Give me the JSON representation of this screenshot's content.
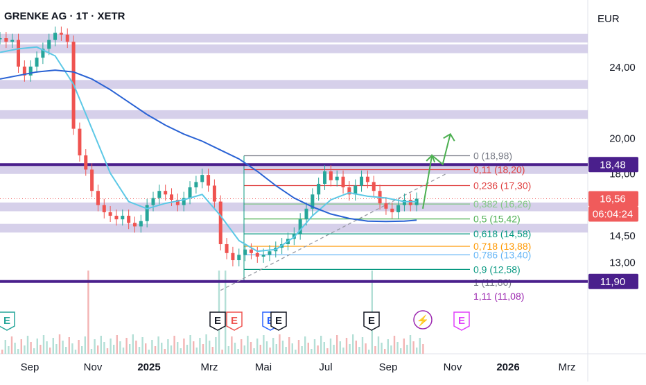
{
  "chart_data": {
    "type": "line",
    "title": "GRENKE AG · 1T · XETR",
    "currency": "EUR",
    "x_ticks": [
      "Sep",
      "Nov",
      "2025",
      "Mrz",
      "Mai",
      "Jul",
      "Sep",
      "Nov",
      "2026",
      "Mrz"
    ],
    "y_ticks": [
      "24,00",
      "20,00",
      "18,00",
      "14,50",
      "13,00"
    ],
    "ylim": [
      10.5,
      26.5
    ],
    "grid": false,
    "price_badges": [
      {
        "label": "18,48",
        "value": 18.48,
        "color": "#4a1f8c"
      },
      {
        "label": "16,56",
        "value": 16.56,
        "color": "#f05b5b"
      },
      {
        "label": "06:04:24",
        "value": 15.42,
        "color": "#f05b5b"
      },
      {
        "label": "11,90",
        "value": 11.9,
        "color": "#4a1f8c"
      }
    ],
    "fibonacci_levels": [
      {
        "label": "0 (18,98)",
        "value": 18.98,
        "color": "#787b86"
      },
      {
        "label": "0,11 (18,20)",
        "value": 18.2,
        "color": "#e04040"
      },
      {
        "label": "0,236 (17,30)",
        "value": 17.3,
        "color": "#e04040"
      },
      {
        "label": "0,382 (16,26)",
        "value": 16.26,
        "color": "#81c784"
      },
      {
        "label": "0,5 (15,42)",
        "value": 15.42,
        "color": "#4caf50"
      },
      {
        "label": "0,618 (14,58)",
        "value": 14.58,
        "color": "#089981"
      },
      {
        "label": "0,718 (13,88)",
        "value": 13.88,
        "color": "#ff9800"
      },
      {
        "label": "0,786 (13,40)",
        "value": 13.4,
        "color": "#64b5f6"
      },
      {
        "label": "0,9 (12,58)",
        "value": 12.58,
        "color": "#089981"
      },
      {
        "label": "1 (11,86)",
        "value": 11.86,
        "color": "#787b86"
      },
      {
        "label": "1,11 (11,08)",
        "value": 11.08,
        "color": "#9c27b0"
      }
    ],
    "support_resistance_bands": [
      [
        25.55,
        25.65
      ],
      [
        24.95,
        25.05
      ],
      [
        22.95,
        23.05
      ],
      [
        21.25,
        21.35
      ],
      [
        18.15,
        18.25
      ],
      [
        16.05,
        16.15
      ],
      [
        14.85,
        14.95
      ]
    ],
    "horizontal_lines": [
      18.48,
      11.9
    ],
    "last_price": 16.56,
    "event_markers": [
      "E",
      "E",
      "E",
      "E",
      "E",
      "E",
      "⚡",
      "E"
    ],
    "series": [
      {
        "type": "candlestick",
        "points": [
          [
            0.0,
            25.6
          ],
          [
            0.02,
            25.4
          ],
          [
            0.04,
            25.5
          ],
          [
            0.06,
            24.0
          ],
          [
            0.08,
            23.5
          ],
          [
            0.1,
            24.0
          ],
          [
            0.12,
            24.5
          ],
          [
            0.14,
            25.0
          ],
          [
            0.16,
            25.5
          ],
          [
            0.18,
            25.9
          ],
          [
            0.2,
            25.8
          ],
          [
            0.22,
            25.4
          ],
          [
            0.24,
            20.5
          ],
          [
            0.26,
            19.0
          ],
          [
            0.28,
            18.2
          ],
          [
            0.3,
            17.0
          ],
          [
            0.32,
            16.2
          ],
          [
            0.34,
            15.8
          ],
          [
            0.36,
            15.6
          ],
          [
            0.38,
            15.4
          ],
          [
            0.4,
            15.6
          ],
          [
            0.42,
            15.2
          ],
          [
            0.44,
            15.0
          ],
          [
            0.46,
            15.3
          ],
          [
            0.48,
            16.2
          ],
          [
            0.5,
            16.6
          ],
          [
            0.52,
            17.0
          ],
          [
            0.54,
            16.8
          ],
          [
            0.56,
            16.5
          ],
          [
            0.58,
            16.2
          ],
          [
            0.6,
            16.6
          ],
          [
            0.62,
            17.2
          ],
          [
            0.64,
            17.5
          ],
          [
            0.66,
            17.9
          ],
          [
            0.68,
            17.3
          ],
          [
            0.7,
            16.4
          ],
          [
            0.72,
            14.0
          ],
          [
            0.74,
            13.5
          ],
          [
            0.76,
            13.1
          ],
          [
            0.78,
            13.4
          ],
          [
            0.8,
            13.7
          ],
          [
            0.82,
            13.5
          ],
          [
            0.84,
            13.3
          ],
          [
            0.86,
            13.4
          ],
          [
            0.88,
            13.6
          ],
          [
            0.9,
            13.8
          ],
          [
            0.92,
            14.0
          ],
          [
            0.94,
            14.3
          ],
          [
            0.96,
            14.6
          ],
          [
            0.98,
            15.4
          ],
          [
            1.0,
            16.0
          ],
          [
            1.02,
            16.8
          ],
          [
            1.04,
            17.4
          ],
          [
            1.06,
            18.1
          ],
          [
            1.08,
            17.6
          ],
          [
            1.1,
            17.8
          ],
          [
            1.12,
            17.2
          ],
          [
            1.14,
            16.8
          ],
          [
            1.16,
            17.3
          ],
          [
            1.18,
            17.8
          ],
          [
            1.2,
            17.5
          ],
          [
            1.22,
            17.0
          ],
          [
            1.24,
            16.3
          ],
          [
            1.26,
            16.0
          ],
          [
            1.28,
            15.8
          ],
          [
            1.3,
            16.2
          ],
          [
            1.32,
            16.5
          ],
          [
            1.34,
            16.2
          ],
          [
            1.36,
            16.56
          ]
        ]
      },
      {
        "type": "ma_fast",
        "color": "#5cc8e6",
        "points": [
          [
            0.0,
            24.8
          ],
          [
            0.06,
            25.0
          ],
          [
            0.12,
            25.1
          ],
          [
            0.18,
            24.6
          ],
          [
            0.24,
            23.0
          ],
          [
            0.3,
            20.5
          ],
          [
            0.36,
            18.0
          ],
          [
            0.42,
            16.4
          ],
          [
            0.48,
            16.0
          ],
          [
            0.54,
            16.3
          ],
          [
            0.6,
            16.5
          ],
          [
            0.66,
            16.8
          ],
          [
            0.72,
            15.6
          ],
          [
            0.78,
            14.2
          ],
          [
            0.84,
            13.6
          ],
          [
            0.9,
            13.7
          ],
          [
            0.96,
            14.4
          ],
          [
            1.02,
            15.6
          ],
          [
            1.08,
            16.5
          ],
          [
            1.14,
            16.9
          ],
          [
            1.2,
            16.7
          ],
          [
            1.26,
            16.6
          ],
          [
            1.32,
            16.4
          ],
          [
            1.36,
            16.4
          ]
        ]
      },
      {
        "type": "ma_slow",
        "color": "#2962d4",
        "points": [
          [
            0.0,
            23.3
          ],
          [
            0.06,
            23.5
          ],
          [
            0.12,
            23.7
          ],
          [
            0.18,
            23.8
          ],
          [
            0.24,
            23.7
          ],
          [
            0.3,
            23.3
          ],
          [
            0.36,
            22.7
          ],
          [
            0.42,
            22.0
          ],
          [
            0.48,
            21.3
          ],
          [
            0.54,
            20.7
          ],
          [
            0.6,
            20.2
          ],
          [
            0.66,
            19.8
          ],
          [
            0.72,
            19.3
          ],
          [
            0.78,
            18.8
          ],
          [
            0.84,
            18.1
          ],
          [
            0.9,
            17.3
          ],
          [
            0.96,
            16.6
          ],
          [
            1.02,
            16.1
          ],
          [
            1.08,
            15.7
          ],
          [
            1.14,
            15.45
          ],
          [
            1.2,
            15.3
          ],
          [
            1.26,
            15.28
          ],
          [
            1.32,
            15.3
          ],
          [
            1.36,
            15.35
          ]
        ]
      }
    ],
    "annotations": {
      "trendline": [
        [
          0.72,
          11.4
        ],
        [
          1.46,
          18.0
        ]
      ],
      "forecast_arrow": [
        [
          1.38,
          16.0
        ],
        [
          1.41,
          19.0
        ],
        [
          1.445,
          18.5
        ],
        [
          1.47,
          20.2
        ]
      ]
    }
  }
}
